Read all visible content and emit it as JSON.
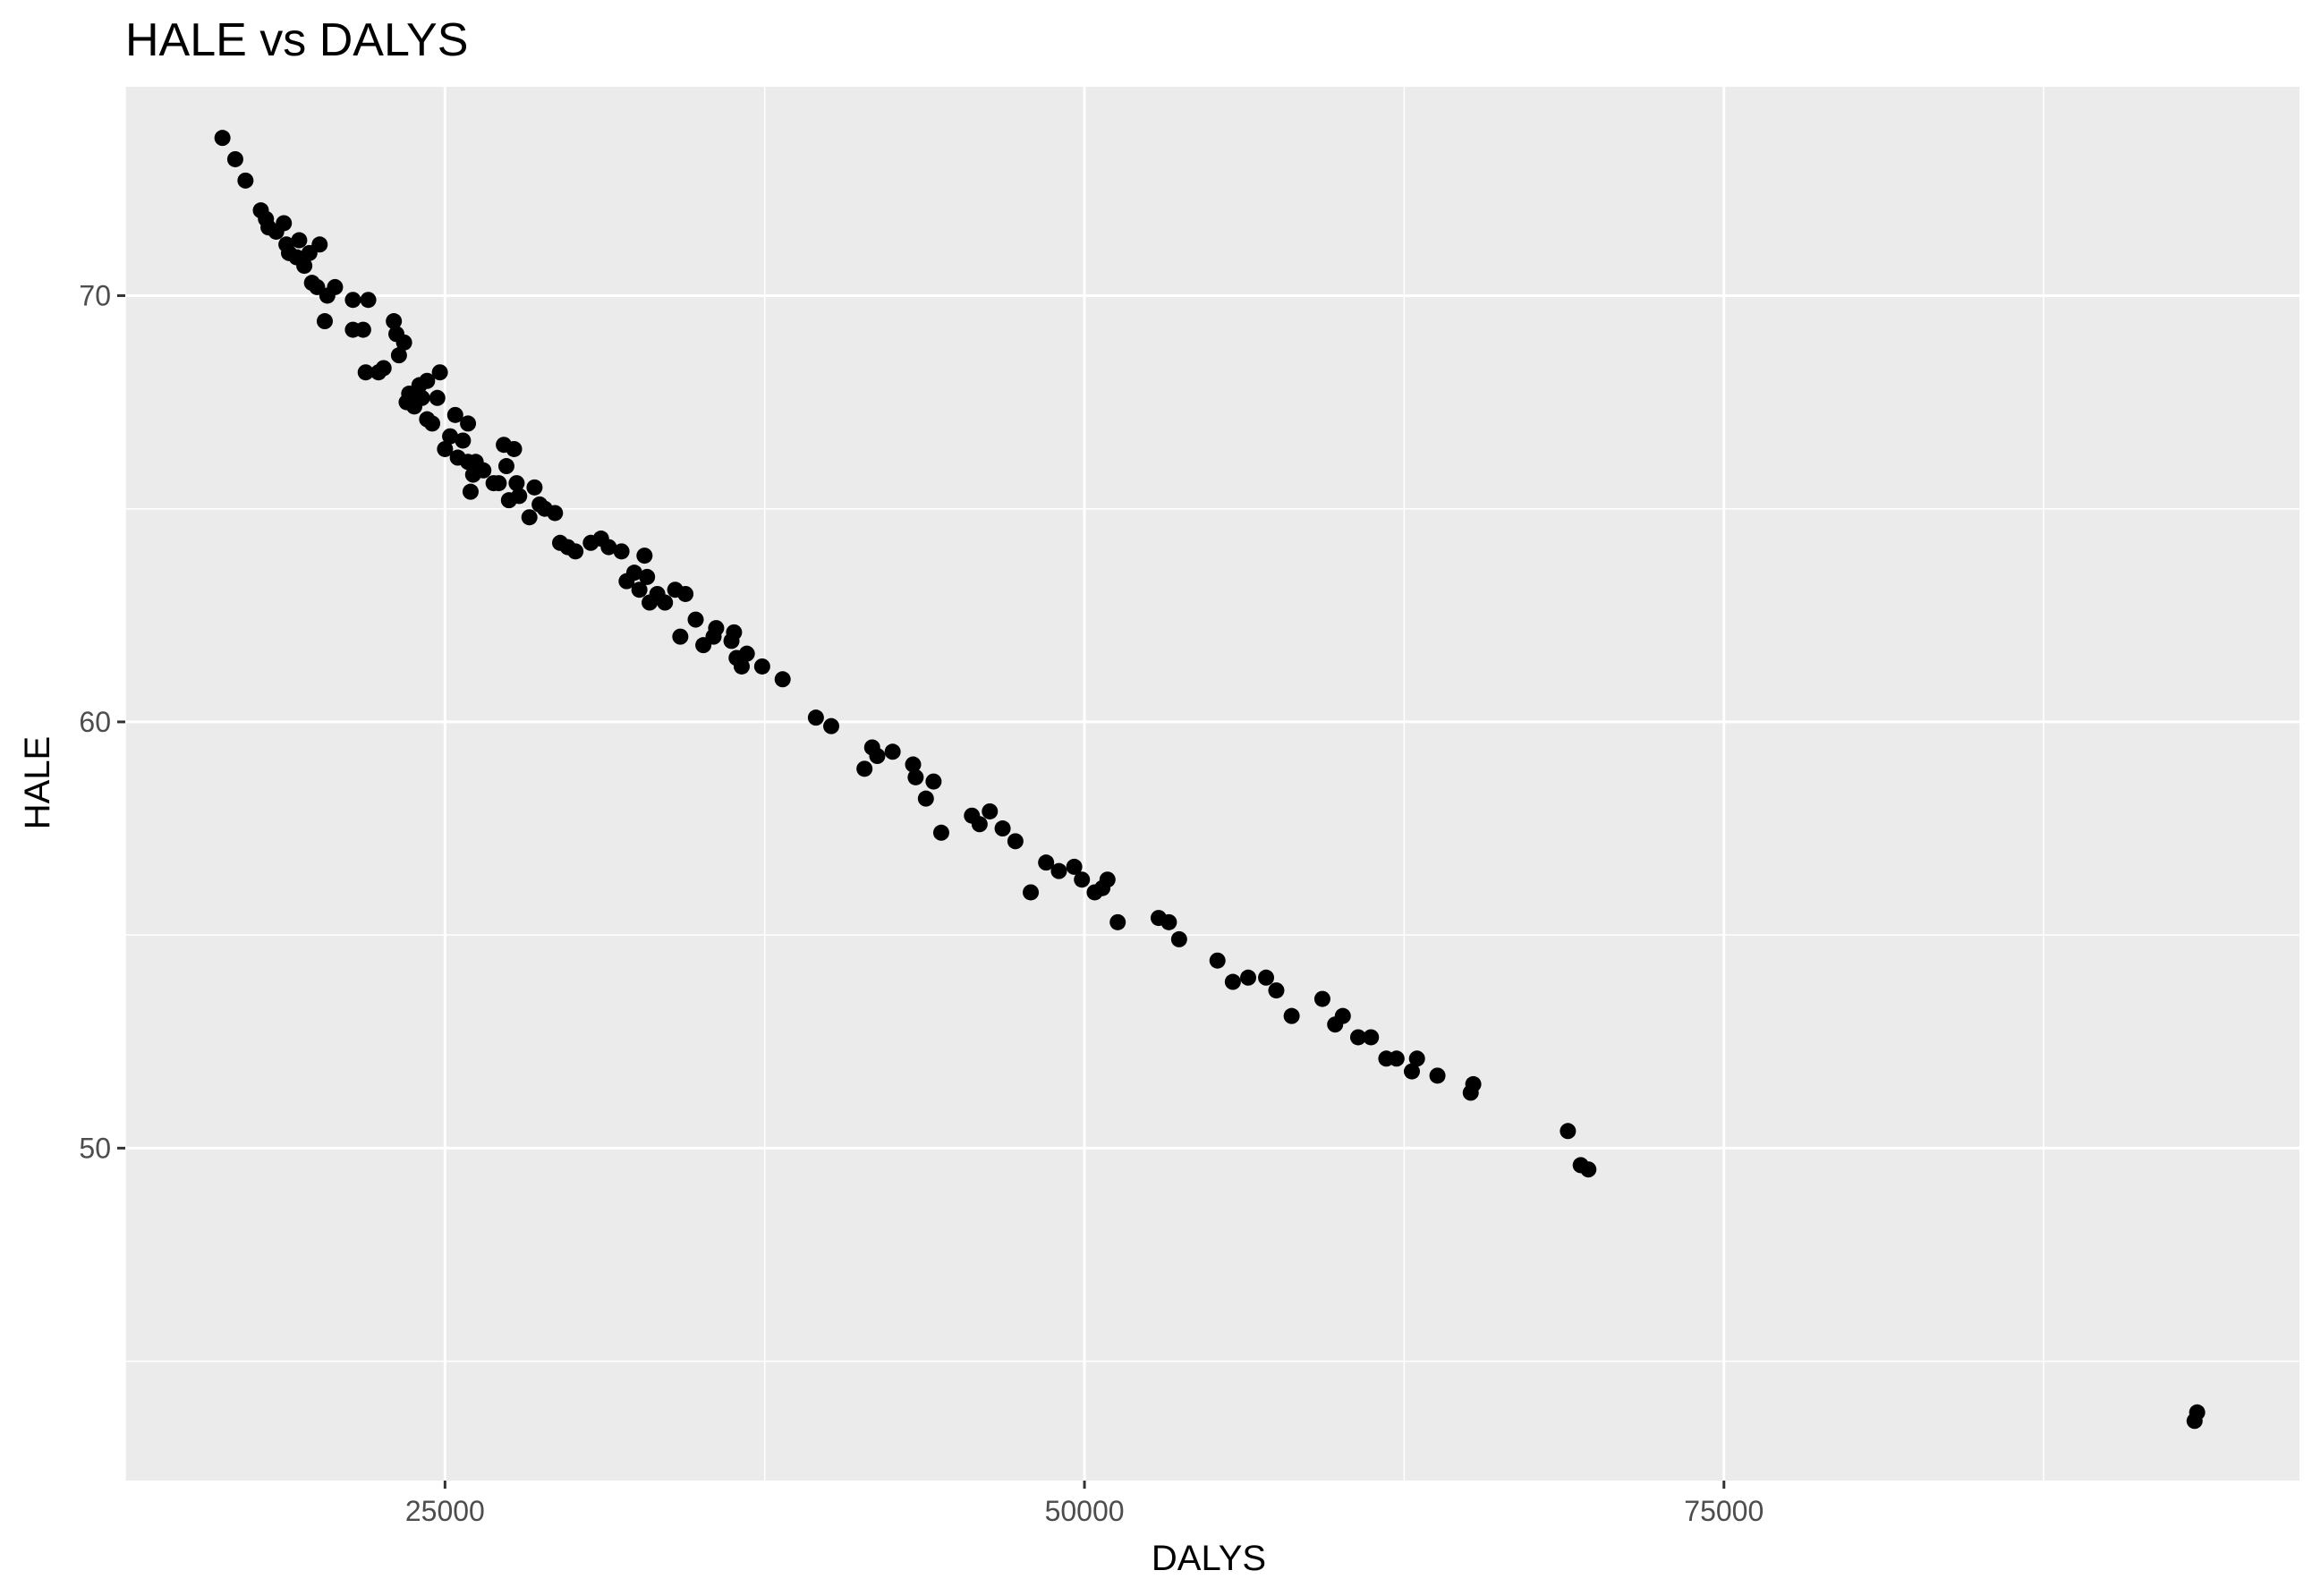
{
  "chart_data": {
    "type": "scatter",
    "title": "HALE vs DALYS",
    "xlabel": "DALYS",
    "ylabel": "HALE",
    "xlim": [
      12500,
      97500
    ],
    "ylim": [
      42.2,
      74.9
    ],
    "x_major_ticks": [
      25000,
      50000,
      75000
    ],
    "x_tick_labels": [
      "25000",
      "50000",
      "75000"
    ],
    "x_minor_ticks": [
      12500,
      37500,
      62500,
      87500
    ],
    "y_major_ticks": [
      50,
      60,
      70
    ],
    "y_tick_labels": [
      "50",
      "60",
      "70"
    ],
    "y_minor_ticks": [
      45,
      55,
      65
    ],
    "grid": true,
    "legend": "none",
    "colors": {
      "panel": "#ebebeb",
      "grid": "#ffffff",
      "point": "#000000",
      "tick_text": "#4d4d4d"
    },
    "points": [
      [
        16300,
        73.7
      ],
      [
        16800,
        73.2
      ],
      [
        17200,
        72.7
      ],
      [
        17800,
        72.0
      ],
      [
        18000,
        71.8
      ],
      [
        18100,
        71.6
      ],
      [
        18400,
        71.5
      ],
      [
        18700,
        71.7
      ],
      [
        18800,
        71.2
      ],
      [
        18900,
        71.0
      ],
      [
        19200,
        70.9
      ],
      [
        19300,
        71.3
      ],
      [
        19500,
        70.7
      ],
      [
        19700,
        71.0
      ],
      [
        19800,
        70.3
      ],
      [
        20000,
        70.2
      ],
      [
        20100,
        71.2
      ],
      [
        20300,
        69.4
      ],
      [
        20400,
        70.0
      ],
      [
        20700,
        70.2
      ],
      [
        21400,
        69.2
      ],
      [
        21400,
        69.9
      ],
      [
        21800,
        69.2
      ],
      [
        21900,
        68.2
      ],
      [
        22000,
        69.9
      ],
      [
        22400,
        68.2
      ],
      [
        22600,
        68.3
      ],
      [
        23000,
        69.4
      ],
      [
        23100,
        69.1
      ],
      [
        23200,
        68.6
      ],
      [
        23400,
        68.9
      ],
      [
        23500,
        67.5
      ],
      [
        23600,
        67.7
      ],
      [
        23800,
        67.4
      ],
      [
        24000,
        67.9
      ],
      [
        24100,
        67.6
      ],
      [
        24300,
        68.0
      ],
      [
        24300,
        67.1
      ],
      [
        24500,
        67.0
      ],
      [
        24700,
        67.6
      ],
      [
        24800,
        68.2
      ],
      [
        25000,
        66.4
      ],
      [
        25200,
        66.7
      ],
      [
        25400,
        67.2
      ],
      [
        25500,
        66.2
      ],
      [
        25700,
        66.6
      ],
      [
        25900,
        67.0
      ],
      [
        25900,
        66.1
      ],
      [
        26000,
        65.4
      ],
      [
        26100,
        65.8
      ],
      [
        26200,
        66.1
      ],
      [
        26500,
        65.9
      ],
      [
        26900,
        65.6
      ],
      [
        27100,
        65.6
      ],
      [
        27300,
        66.5
      ],
      [
        27400,
        66.0
      ],
      [
        27500,
        65.2
      ],
      [
        27700,
        66.4
      ],
      [
        27800,
        65.6
      ],
      [
        27900,
        65.3
      ],
      [
        28300,
        64.8
      ],
      [
        28500,
        65.5
      ],
      [
        28700,
        65.1
      ],
      [
        28900,
        65.0
      ],
      [
        29300,
        64.9
      ],
      [
        29500,
        64.2
      ],
      [
        29800,
        64.1
      ],
      [
        30100,
        64.0
      ],
      [
        30700,
        64.2
      ],
      [
        31100,
        64.3
      ],
      [
        31400,
        64.1
      ],
      [
        31900,
        64.0
      ],
      [
        32100,
        63.3
      ],
      [
        32400,
        63.5
      ],
      [
        32600,
        63.1
      ],
      [
        32800,
        63.9
      ],
      [
        32900,
        63.4
      ],
      [
        33000,
        62.8
      ],
      [
        33300,
        63.0
      ],
      [
        33600,
        62.8
      ],
      [
        34000,
        63.1
      ],
      [
        34200,
        62.0
      ],
      [
        34400,
        63.0
      ],
      [
        34800,
        62.4
      ],
      [
        35100,
        61.8
      ],
      [
        35500,
        62.0
      ],
      [
        35600,
        62.2
      ],
      [
        36200,
        61.9
      ],
      [
        36300,
        62.1
      ],
      [
        36400,
        61.5
      ],
      [
        36600,
        61.3
      ],
      [
        36800,
        61.6
      ],
      [
        37400,
        61.3
      ],
      [
        38200,
        61.0
      ],
      [
        39500,
        60.1
      ],
      [
        40100,
        59.9
      ],
      [
        41400,
        58.9
      ],
      [
        41700,
        59.4
      ],
      [
        41900,
        59.2
      ],
      [
        42500,
        59.3
      ],
      [
        43300,
        59.0
      ],
      [
        43400,
        58.7
      ],
      [
        43800,
        58.2
      ],
      [
        44100,
        58.6
      ],
      [
        44400,
        57.4
      ],
      [
        45600,
        57.8
      ],
      [
        45900,
        57.6
      ],
      [
        46300,
        57.9
      ],
      [
        46800,
        57.5
      ],
      [
        47300,
        57.2
      ],
      [
        47900,
        56.0
      ],
      [
        48500,
        56.7
      ],
      [
        49000,
        56.5
      ],
      [
        49600,
        56.6
      ],
      [
        49900,
        56.3
      ],
      [
        50400,
        56.0
      ],
      [
        50700,
        56.1
      ],
      [
        50900,
        56.3
      ],
      [
        51300,
        55.3
      ],
      [
        52900,
        55.4
      ],
      [
        53300,
        55.3
      ],
      [
        53700,
        54.9
      ],
      [
        55200,
        54.4
      ],
      [
        55800,
        53.9
      ],
      [
        56400,
        54.0
      ],
      [
        57100,
        54.0
      ],
      [
        57500,
        53.7
      ],
      [
        58100,
        53.1
      ],
      [
        59300,
        53.5
      ],
      [
        59800,
        52.9
      ],
      [
        60100,
        53.1
      ],
      [
        60700,
        52.6
      ],
      [
        61200,
        52.6
      ],
      [
        61800,
        52.1
      ],
      [
        62200,
        52.1
      ],
      [
        62800,
        51.8
      ],
      [
        63000,
        52.1
      ],
      [
        63800,
        51.7
      ],
      [
        65100,
        51.3
      ],
      [
        65200,
        51.5
      ],
      [
        68900,
        50.4
      ],
      [
        69400,
        49.6
      ],
      [
        69700,
        49.5
      ],
      [
        93400,
        43.6
      ],
      [
        93500,
        43.8
      ]
    ]
  }
}
